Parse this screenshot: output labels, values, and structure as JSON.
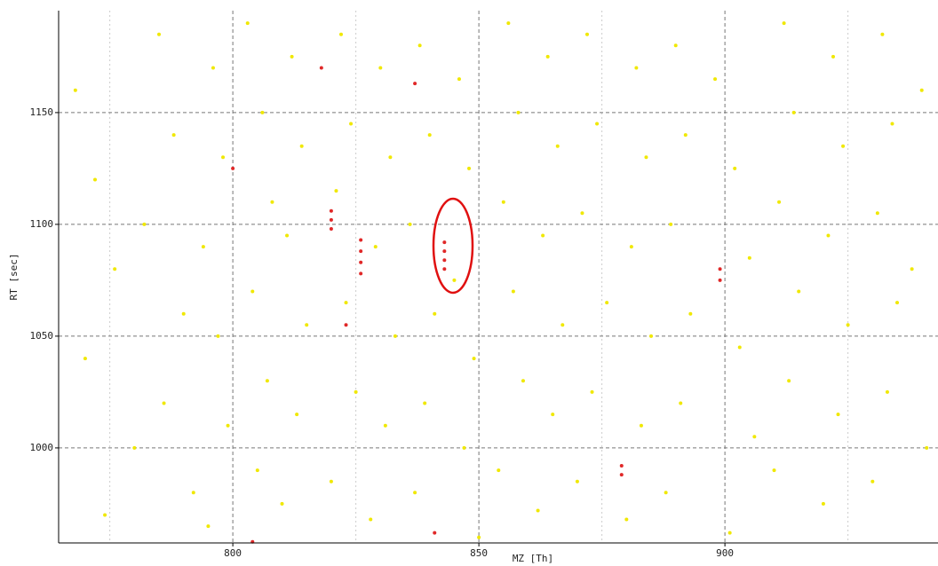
{
  "chart_data": {
    "type": "scatter",
    "xlabel": "MZ [Th]",
    "ylabel": "RT [sec]",
    "xlim": [
      764.6,
      943.3
    ],
    "ylim": [
      957.5,
      1195.6
    ],
    "xticks": [
      800,
      850,
      900
    ],
    "yticks": [
      1000,
      1050,
      1100,
      1150
    ],
    "xminor": [
      775,
      825,
      875,
      925
    ],
    "grid": true,
    "series": [
      {
        "color": "#f0e800",
        "x": [
          768,
          772,
          776,
          770,
          780,
          774,
          785,
          788,
          782,
          790,
          786,
          792,
          796,
          798,
          794,
          797,
          799,
          795,
          803,
          806,
          808,
          804,
          807,
          805,
          812,
          814,
          811,
          815,
          813,
          810,
          822,
          824,
          821,
          823,
          825,
          820,
          830,
          832,
          829,
          833,
          831,
          828,
          838,
          840,
          836,
          841,
          839,
          837,
          846,
          848,
          845,
          849,
          847,
          850,
          856,
          858,
          855,
          857,
          859,
          854,
          864,
          866,
          863,
          867,
          865,
          862,
          872,
          874,
          871,
          876,
          873,
          870,
          882,
          884,
          881,
          885,
          883,
          880,
          890,
          892,
          889,
          893,
          891,
          888,
          898,
          902,
          905,
          903,
          906,
          901,
          912,
          914,
          911,
          915,
          913,
          910,
          922,
          924,
          921,
          925,
          923,
          920,
          932,
          934,
          931,
          935,
          933,
          930,
          940,
          938,
          941
        ],
        "values": [
          1160,
          1120,
          1080,
          1040,
          1000,
          970,
          1185,
          1140,
          1100,
          1060,
          1020,
          980,
          1170,
          1130,
          1090,
          1050,
          1010,
          965,
          1190,
          1150,
          1110,
          1070,
          1030,
          990,
          1175,
          1135,
          1095,
          1055,
          1015,
          975,
          1185,
          1145,
          1115,
          1065,
          1025,
          985,
          1170,
          1130,
          1090,
          1050,
          1010,
          968,
          1180,
          1140,
          1100,
          1060,
          1020,
          980,
          1165,
          1125,
          1075,
          1040,
          1000,
          960,
          1190,
          1150,
          1110,
          1070,
          1030,
          990,
          1175,
          1135,
          1095,
          1055,
          1015,
          972,
          1185,
          1145,
          1105,
          1065,
          1025,
          985,
          1170,
          1130,
          1090,
          1050,
          1010,
          968,
          1180,
          1140,
          1100,
          1060,
          1020,
          980,
          1165,
          1125,
          1085,
          1045,
          1005,
          962,
          1190,
          1150,
          1110,
          1070,
          1030,
          990,
          1175,
          1135,
          1095,
          1055,
          1015,
          975,
          1185,
          1145,
          1105,
          1065,
          1025,
          985,
          1160,
          1080,
          1000
        ]
      },
      {
        "color": "#e02828",
        "x": [
          820,
          820,
          820,
          826,
          826,
          826,
          826,
          843,
          843,
          843,
          843,
          837,
          818,
          800,
          879,
          879,
          899,
          899,
          804,
          841,
          823
        ],
        "values": [
          1106,
          1102,
          1098,
          1093,
          1088,
          1083,
          1078,
          1092,
          1088,
          1084,
          1080,
          1163,
          1170,
          1125,
          988,
          992,
          1075,
          1080,
          958,
          962,
          1055
        ]
      }
    ]
  }
}
